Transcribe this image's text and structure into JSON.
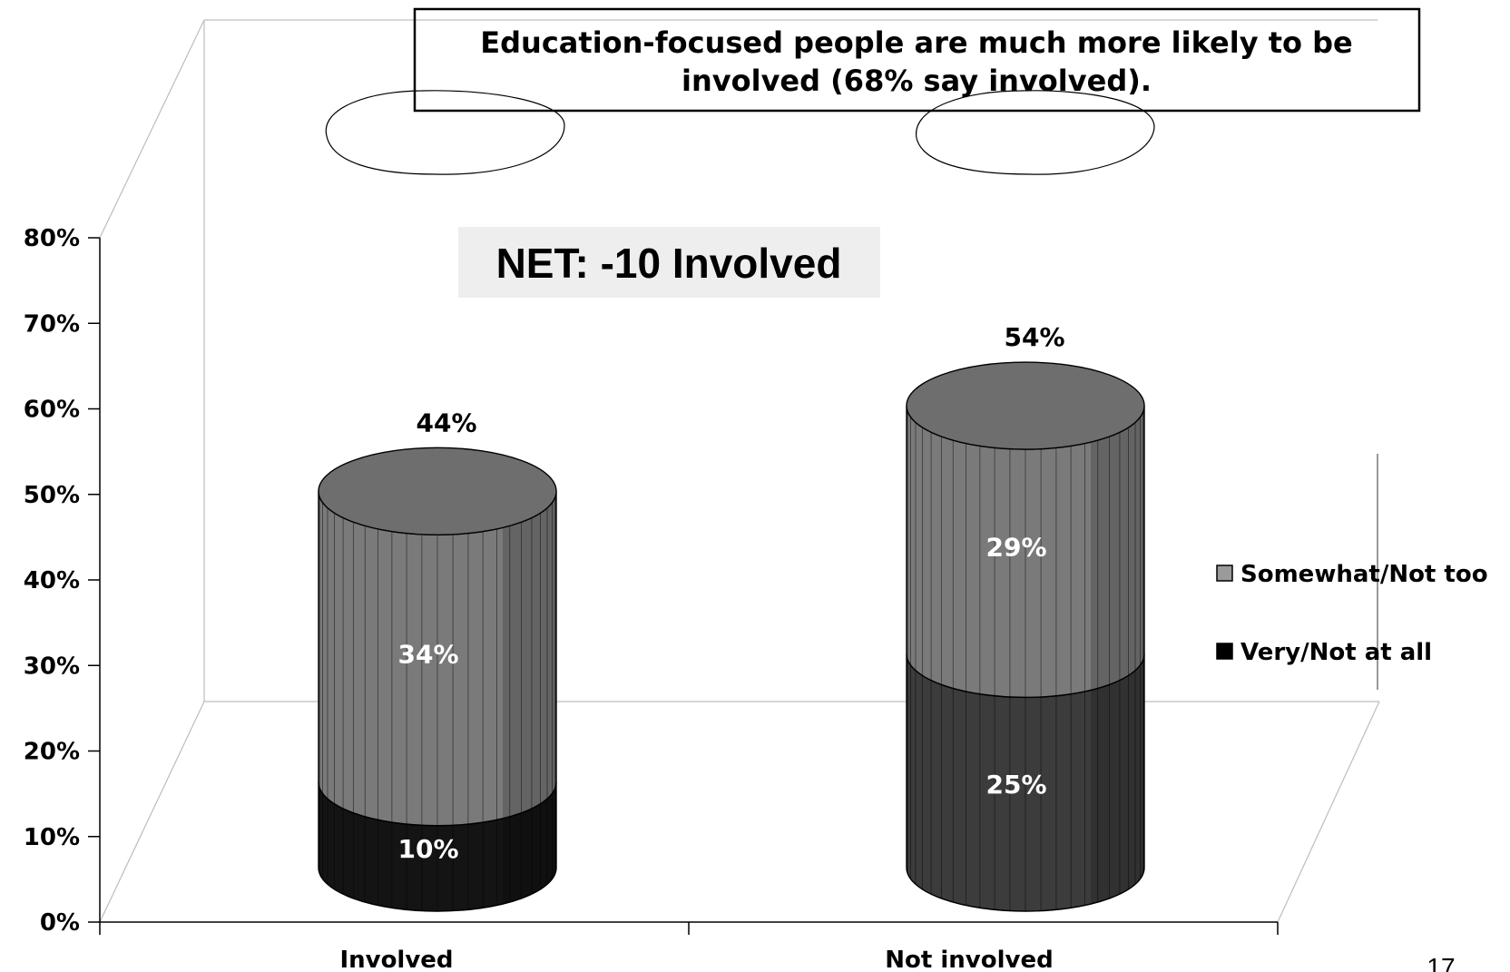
{
  "chart_data": {
    "type": "bar",
    "stacked": true,
    "style": "3d-cylinder",
    "categories": [
      "Involved",
      "Not involved"
    ],
    "series": [
      {
        "name": "Very/Not at all",
        "values": [
          10,
          25
        ],
        "color": "#141414"
      },
      {
        "name": "Somewhat/Not too",
        "values": [
          34,
          29
        ],
        "color": "#7a7a7a"
      }
    ],
    "totals": [
      "44%",
      "54%"
    ],
    "data_labels": [
      [
        "10%",
        "25%"
      ],
      [
        "34%",
        "29%"
      ]
    ],
    "ylim": [
      0,
      80
    ],
    "yticks": [
      "0%",
      "10%",
      "20%",
      "30%",
      "40%",
      "50%",
      "60%",
      "70%",
      "80%"
    ],
    "legend_position": "right",
    "grid": false
  },
  "annotations": {
    "callout_line1": "Education-focused people are much more likely to be",
    "callout_line2": "involved (68% say involved).",
    "net_label": "NET: -10 Involved"
  },
  "page_number": "17",
  "colors": {
    "somewhat_side": "#7a7a7a",
    "somewhat_top": "#6e6e6e",
    "very_involved": "#141414",
    "very_not_involved": "#3c3c3c",
    "net_box_bg": "#eeeeee"
  }
}
